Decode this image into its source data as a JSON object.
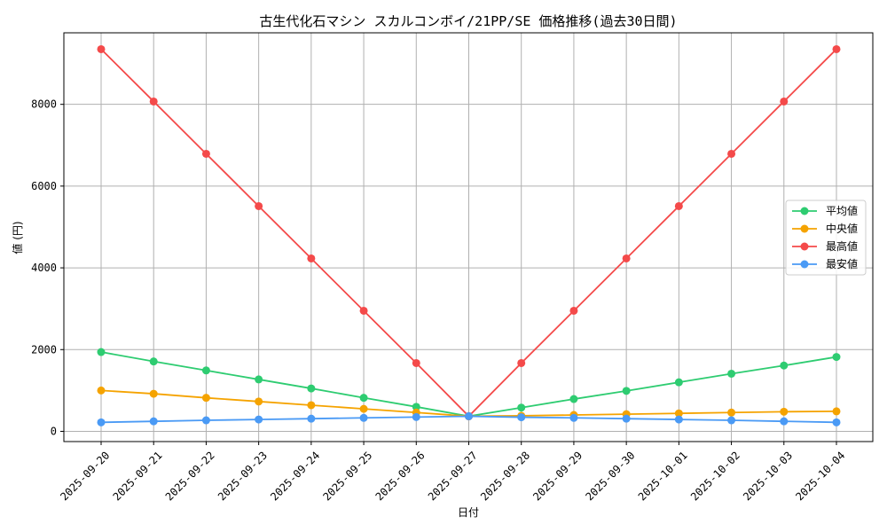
{
  "chart_data": {
    "type": "line",
    "title": "古生代化石マシン スカルコンボイ/21PP/SE 価格推移(過去30日間)",
    "xlabel": "日付",
    "ylabel": "値 (円)",
    "ylim": [
      -250,
      9750
    ],
    "y_ticks": [
      0,
      2000,
      4000,
      6000,
      8000
    ],
    "y_tick_labels": [
      "0",
      "2000",
      "4000",
      "6000",
      "8000"
    ],
    "grid": true,
    "legend_position": "center-right",
    "categories": [
      "2025-09-20",
      "2025-09-21",
      "2025-09-22",
      "2025-09-23",
      "2025-09-24",
      "2025-09-25",
      "2025-09-26",
      "2025-09-27",
      "2025-09-28",
      "2025-09-29",
      "2025-09-30",
      "2025-10-01",
      "2025-10-02",
      "2025-10-03",
      "2025-10-04"
    ],
    "series": [
      {
        "name": "平均値",
        "color": "#2ecc71",
        "values": [
          1940,
          1710,
          1490,
          1270,
          1050,
          820,
          600,
          370,
          580,
          790,
          990,
          1200,
          1410,
          1610,
          1820
        ]
      },
      {
        "name": "中央値",
        "color": "#f5a300",
        "values": [
          1000,
          920,
          820,
          730,
          640,
          550,
          460,
          370,
          380,
          400,
          420,
          440,
          460,
          480,
          490
        ]
      },
      {
        "name": "最高値",
        "color": "#f44a4a",
        "values": [
          9350,
          8070,
          6790,
          5510,
          4230,
          2950,
          1670,
          370,
          1670,
          2950,
          4230,
          5510,
          6790,
          8070,
          9350
        ]
      },
      {
        "name": "最安値",
        "color": "#4a9af5",
        "values": [
          220,
          245,
          270,
          290,
          310,
          330,
          350,
          370,
          345,
          330,
          310,
          290,
          270,
          245,
          220
        ]
      }
    ]
  }
}
